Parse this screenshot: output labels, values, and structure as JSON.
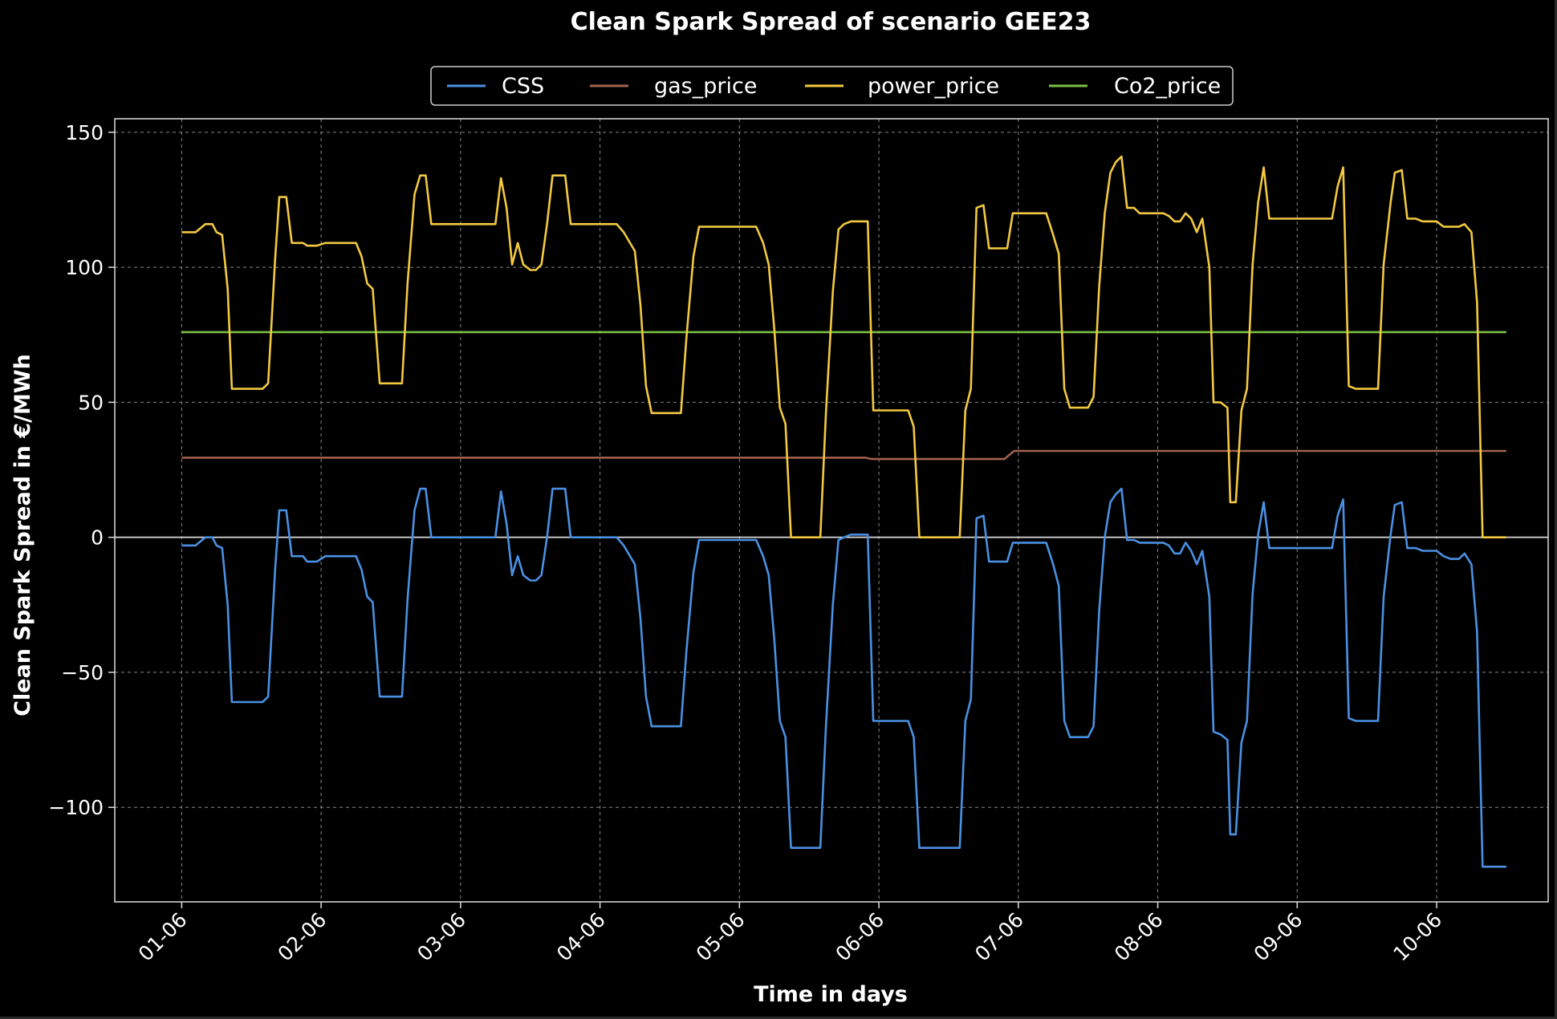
{
  "chart_data": {
    "type": "line",
    "title": "Clean Spark Spread of scenario GEE23",
    "xlabel": "Time in days",
    "ylabel": "Clean Spark Spread in €/MWh",
    "x_ticks": [
      "01-06",
      "02-06",
      "03-06",
      "04-06",
      "05-06",
      "06-06",
      "07-06",
      "08-06",
      "09-06",
      "10-06"
    ],
    "xlim": [
      -0.48,
      9.8
    ],
    "ylim": [
      -135,
      155
    ],
    "y_ticks": [
      -100,
      -50,
      0,
      50,
      100,
      150
    ],
    "grid": true,
    "legend_position": "top-center",
    "zero_line": true,
    "colors": {
      "background": "#000000",
      "axes_edge": "#dddddd",
      "grid": "#888888",
      "zero_line": "#dddddd"
    },
    "series": [
      {
        "name": "CSS",
        "color": "#4a90e2",
        "points": [
          [
            0,
            -3
          ],
          [
            0.1,
            -3
          ],
          [
            0.17,
            0
          ],
          [
            0.22,
            0
          ],
          [
            0.25,
            -3
          ],
          [
            0.29,
            -4
          ],
          [
            0.33,
            -25
          ],
          [
            0.36,
            -61
          ],
          [
            0.42,
            -61
          ],
          [
            0.58,
            -61
          ],
          [
            0.62,
            -59
          ],
          [
            0.67,
            -12
          ],
          [
            0.7,
            10
          ],
          [
            0.75,
            10
          ],
          [
            0.79,
            -7
          ],
          [
            0.87,
            -7
          ],
          [
            0.9,
            -9
          ],
          [
            0.97,
            -9
          ],
          [
            1.03,
            -7
          ],
          [
            1.25,
            -7
          ],
          [
            1.29,
            -12
          ],
          [
            1.33,
            -22
          ],
          [
            1.37,
            -24
          ],
          [
            1.42,
            -59
          ],
          [
            1.58,
            -59
          ],
          [
            1.62,
            -23
          ],
          [
            1.67,
            10
          ],
          [
            1.71,
            18
          ],
          [
            1.75,
            18
          ],
          [
            1.79,
            0
          ],
          [
            1.9,
            0
          ],
          [
            2.25,
            0
          ],
          [
            2.29,
            17
          ],
          [
            2.33,
            5
          ],
          [
            2.37,
            -14
          ],
          [
            2.41,
            -7
          ],
          [
            2.45,
            -14
          ],
          [
            2.5,
            -16
          ],
          [
            2.54,
            -16
          ],
          [
            2.58,
            -14
          ],
          [
            2.62,
            0
          ],
          [
            2.66,
            18
          ],
          [
            2.75,
            18
          ],
          [
            2.79,
            0
          ],
          [
            3.0,
            0
          ],
          [
            3.12,
            0
          ],
          [
            3.17,
            -3
          ],
          [
            3.25,
            -10
          ],
          [
            3.29,
            -30
          ],
          [
            3.33,
            -59
          ],
          [
            3.37,
            -70
          ],
          [
            3.45,
            -70
          ],
          [
            3.58,
            -70
          ],
          [
            3.62,
            -42
          ],
          [
            3.67,
            -13
          ],
          [
            3.71,
            -1
          ],
          [
            3.75,
            -1
          ],
          [
            4.12,
            -1
          ],
          [
            4.17,
            -7
          ],
          [
            4.21,
            -14
          ],
          [
            4.25,
            -38
          ],
          [
            4.29,
            -68
          ],
          [
            4.33,
            -74
          ],
          [
            4.37,
            -115
          ],
          [
            4.45,
            -115
          ],
          [
            4.58,
            -115
          ],
          [
            4.62,
            -70
          ],
          [
            4.67,
            -25
          ],
          [
            4.71,
            -1
          ],
          [
            4.75,
            0
          ],
          [
            4.8,
            1
          ],
          [
            4.87,
            1
          ],
          [
            4.92,
            1
          ],
          [
            4.96,
            -68
          ],
          [
            5.1,
            -68
          ],
          [
            5.21,
            -68
          ],
          [
            5.25,
            -74
          ],
          [
            5.29,
            -115
          ],
          [
            5.45,
            -115
          ],
          [
            5.58,
            -115
          ],
          [
            5.62,
            -68
          ],
          [
            5.66,
            -60
          ],
          [
            5.7,
            7
          ],
          [
            5.75,
            8
          ],
          [
            5.79,
            -9
          ],
          [
            5.85,
            -9
          ],
          [
            5.92,
            -9
          ],
          [
            5.96,
            -2
          ],
          [
            6.1,
            -2
          ],
          [
            6.2,
            -2
          ],
          [
            6.25,
            -10
          ],
          [
            6.29,
            -18
          ],
          [
            6.33,
            -68
          ],
          [
            6.37,
            -74
          ],
          [
            6.5,
            -74
          ],
          [
            6.54,
            -70
          ],
          [
            6.58,
            -27
          ],
          [
            6.62,
            0
          ],
          [
            6.66,
            13
          ],
          [
            6.7,
            16
          ],
          [
            6.74,
            18
          ],
          [
            6.78,
            -1
          ],
          [
            6.83,
            -1
          ],
          [
            6.87,
            -2
          ],
          [
            7.0,
            -2
          ],
          [
            7.04,
            -2
          ],
          [
            7.08,
            -3
          ],
          [
            7.12,
            -6
          ],
          [
            7.16,
            -6
          ],
          [
            7.2,
            -2
          ],
          [
            7.24,
            -5
          ],
          [
            7.28,
            -10
          ],
          [
            7.32,
            -5
          ],
          [
            7.37,
            -22
          ],
          [
            7.4,
            -72
          ],
          [
            7.45,
            -73
          ],
          [
            7.5,
            -75
          ],
          [
            7.52,
            -110
          ],
          [
            7.56,
            -110
          ],
          [
            7.6,
            -76
          ],
          [
            7.64,
            -68
          ],
          [
            7.68,
            -21
          ],
          [
            7.72,
            1
          ],
          [
            7.76,
            13
          ],
          [
            7.8,
            -4
          ],
          [
            7.9,
            -4
          ],
          [
            8.0,
            -4
          ],
          [
            8.1,
            -4
          ],
          [
            8.25,
            -4
          ],
          [
            8.29,
            8
          ],
          [
            8.33,
            14
          ],
          [
            8.37,
            -67
          ],
          [
            8.42,
            -68
          ],
          [
            8.58,
            -68
          ],
          [
            8.62,
            -22
          ],
          [
            8.67,
            1
          ],
          [
            8.7,
            12
          ],
          [
            8.75,
            13
          ],
          [
            8.79,
            -4
          ],
          [
            8.85,
            -4
          ],
          [
            8.9,
            -5
          ],
          [
            9.0,
            -5
          ],
          [
            9.05,
            -7
          ],
          [
            9.1,
            -8
          ],
          [
            9.16,
            -8
          ],
          [
            9.2,
            -6
          ],
          [
            9.25,
            -10
          ],
          [
            9.29,
            -35
          ],
          [
            9.33,
            -122
          ],
          [
            9.45,
            -122
          ],
          [
            9.5,
            -122
          ]
        ]
      },
      {
        "name": "gas_price",
        "color": "#a0614e",
        "points": [
          [
            0,
            29.5
          ],
          [
            4.9,
            29.5
          ],
          [
            4.95,
            29
          ],
          [
            5.9,
            29
          ],
          [
            5.97,
            32
          ],
          [
            9.5,
            32
          ]
        ]
      },
      {
        "name": "power_price",
        "color": "#f2c940",
        "points": [
          [
            0,
            113
          ],
          [
            0.1,
            113
          ],
          [
            0.17,
            116
          ],
          [
            0.22,
            116
          ],
          [
            0.25,
            113
          ],
          [
            0.29,
            112
          ],
          [
            0.33,
            92
          ],
          [
            0.36,
            55
          ],
          [
            0.42,
            55
          ],
          [
            0.58,
            55
          ],
          [
            0.62,
            57
          ],
          [
            0.67,
            103
          ],
          [
            0.7,
            126
          ],
          [
            0.75,
            126
          ],
          [
            0.79,
            109
          ],
          [
            0.87,
            109
          ],
          [
            0.9,
            108
          ],
          [
            0.97,
            108
          ],
          [
            1.03,
            109
          ],
          [
            1.25,
            109
          ],
          [
            1.29,
            104
          ],
          [
            1.33,
            94
          ],
          [
            1.37,
            92
          ],
          [
            1.42,
            57
          ],
          [
            1.58,
            57
          ],
          [
            1.62,
            94
          ],
          [
            1.67,
            127
          ],
          [
            1.71,
            134
          ],
          [
            1.75,
            134
          ],
          [
            1.79,
            116
          ],
          [
            1.9,
            116
          ],
          [
            2.25,
            116
          ],
          [
            2.29,
            133
          ],
          [
            2.33,
            122
          ],
          [
            2.37,
            101
          ],
          [
            2.41,
            109
          ],
          [
            2.45,
            101
          ],
          [
            2.5,
            99
          ],
          [
            2.54,
            99
          ],
          [
            2.58,
            101
          ],
          [
            2.62,
            116
          ],
          [
            2.66,
            134
          ],
          [
            2.75,
            134
          ],
          [
            2.79,
            116
          ],
          [
            3.0,
            116
          ],
          [
            3.12,
            116
          ],
          [
            3.17,
            113
          ],
          [
            3.25,
            106
          ],
          [
            3.29,
            86
          ],
          [
            3.33,
            56
          ],
          [
            3.37,
            46
          ],
          [
            3.45,
            46
          ],
          [
            3.58,
            46
          ],
          [
            3.62,
            74
          ],
          [
            3.67,
            104
          ],
          [
            3.71,
            115
          ],
          [
            3.75,
            115
          ],
          [
            4.12,
            115
          ],
          [
            4.17,
            109
          ],
          [
            4.21,
            101
          ],
          [
            4.25,
            77
          ],
          [
            4.29,
            48
          ],
          [
            4.33,
            42
          ],
          [
            4.37,
            0
          ],
          [
            4.45,
            0
          ],
          [
            4.58,
            0
          ],
          [
            4.62,
            46
          ],
          [
            4.67,
            91
          ],
          [
            4.71,
            114
          ],
          [
            4.75,
            116
          ],
          [
            4.8,
            117
          ],
          [
            4.87,
            117
          ],
          [
            4.92,
            117
          ],
          [
            4.96,
            47
          ],
          [
            5.1,
            47
          ],
          [
            5.21,
            47
          ],
          [
            5.25,
            41
          ],
          [
            5.29,
            0
          ],
          [
            5.45,
            0
          ],
          [
            5.58,
            0
          ],
          [
            5.62,
            47
          ],
          [
            5.66,
            55
          ],
          [
            5.7,
            122
          ],
          [
            5.75,
            123
          ],
          [
            5.79,
            107
          ],
          [
            5.85,
            107
          ],
          [
            5.92,
            107
          ],
          [
            5.96,
            120
          ],
          [
            6.1,
            120
          ],
          [
            6.2,
            120
          ],
          [
            6.25,
            112
          ],
          [
            6.29,
            105
          ],
          [
            6.33,
            55
          ],
          [
            6.37,
            48
          ],
          [
            6.5,
            48
          ],
          [
            6.54,
            52
          ],
          [
            6.58,
            93
          ],
          [
            6.62,
            120
          ],
          [
            6.66,
            135
          ],
          [
            6.7,
            139
          ],
          [
            6.74,
            141
          ],
          [
            6.78,
            122
          ],
          [
            6.83,
            122
          ],
          [
            6.87,
            120
          ],
          [
            7.0,
            120
          ],
          [
            7.04,
            120
          ],
          [
            7.08,
            119
          ],
          [
            7.12,
            117
          ],
          [
            7.16,
            117
          ],
          [
            7.2,
            120
          ],
          [
            7.24,
            118
          ],
          [
            7.28,
            113
          ],
          [
            7.32,
            118
          ],
          [
            7.37,
            100
          ],
          [
            7.4,
            50
          ],
          [
            7.45,
            50
          ],
          [
            7.5,
            48
          ],
          [
            7.52,
            13
          ],
          [
            7.56,
            13
          ],
          [
            7.6,
            47
          ],
          [
            7.64,
            55
          ],
          [
            7.68,
            101
          ],
          [
            7.72,
            124
          ],
          [
            7.76,
            137
          ],
          [
            7.8,
            118
          ],
          [
            7.9,
            118
          ],
          [
            8.0,
            118
          ],
          [
            8.1,
            118
          ],
          [
            8.25,
            118
          ],
          [
            8.29,
            130
          ],
          [
            8.33,
            137
          ],
          [
            8.37,
            56
          ],
          [
            8.42,
            55
          ],
          [
            8.58,
            55
          ],
          [
            8.62,
            101
          ],
          [
            8.67,
            124
          ],
          [
            8.7,
            135
          ],
          [
            8.75,
            136
          ],
          [
            8.79,
            118
          ],
          [
            8.85,
            118
          ],
          [
            8.9,
            117
          ],
          [
            9.0,
            117
          ],
          [
            9.05,
            115
          ],
          [
            9.1,
            115
          ],
          [
            9.16,
            115
          ],
          [
            9.2,
            116
          ],
          [
            9.25,
            113
          ],
          [
            9.29,
            87
          ],
          [
            9.33,
            0
          ],
          [
            9.45,
            0
          ],
          [
            9.5,
            0
          ]
        ]
      },
      {
        "name": "Co2_price",
        "color": "#7bc043",
        "points": [
          [
            0,
            76
          ],
          [
            9.5,
            76
          ]
        ]
      }
    ]
  }
}
